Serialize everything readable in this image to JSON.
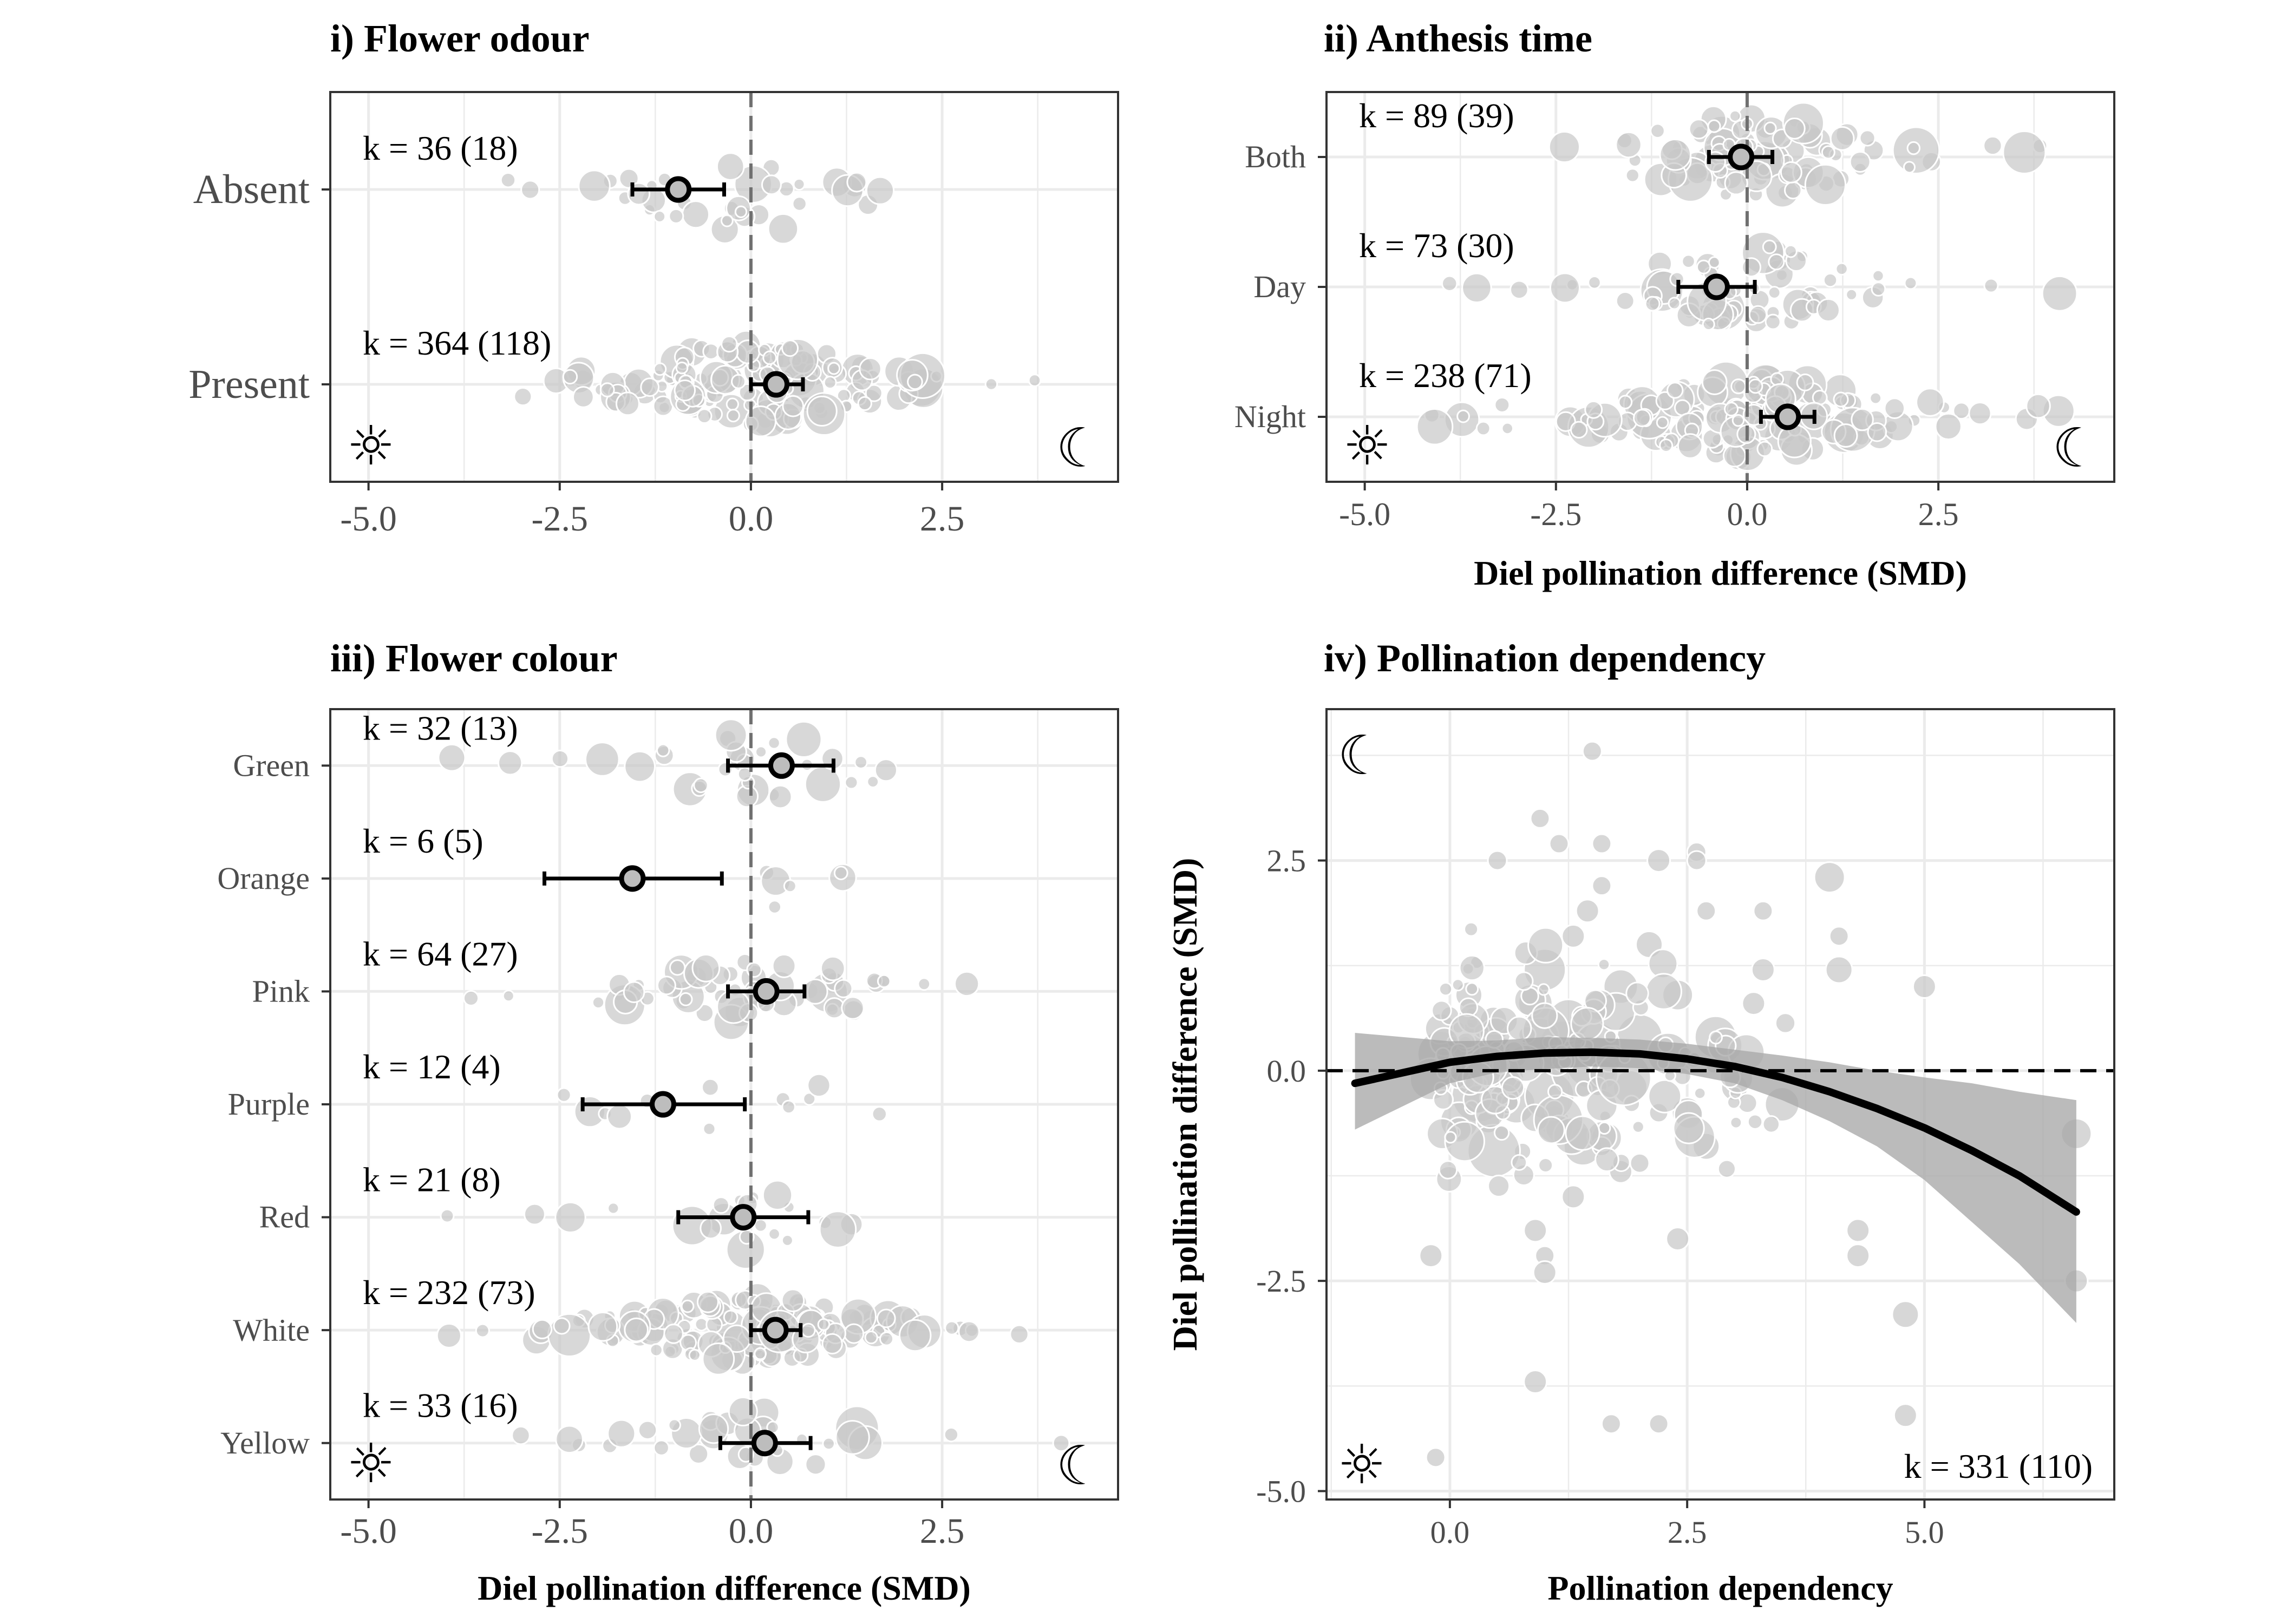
{
  "figure_description_free": true,
  "colors": {
    "points": "#c8c8c8",
    "point_stroke": "#ffffff",
    "estimate": "#000000",
    "ribbon": "#a8a8a8",
    "grid": "#ebebeb",
    "zero_line": "#707070"
  },
  "icons": {
    "day": "sun-icon",
    "night": "moon-icon"
  },
  "symbols": {
    "sun": "☼",
    "moon": "☾"
  },
  "chart_data": [
    {
      "type": "scatter",
      "title": "i) Flower odour",
      "xlabel": "",
      "ylabel": "",
      "xlim": [
        -5.5,
        4.8
      ],
      "xticks": [
        "-5.0",
        "-2.5",
        "0.0",
        "2.5"
      ],
      "xtick_values": [
        -5.0,
        -2.5,
        0.0,
        2.5
      ],
      "categories": [
        "Absent",
        "Present"
      ],
      "k_labels": [
        "k = 36 (18)",
        "k = 364 (118)"
      ],
      "estimates": [
        -0.95,
        0.33
      ],
      "ci_lower": [
        -1.55,
        0.0
      ],
      "ci_upper": [
        -0.35,
        0.68
      ],
      "point_counts": [
        36,
        364
      ],
      "point_spread": [
        1.1,
        1.05
      ]
    },
    {
      "type": "scatter",
      "title": "ii) Anthesis time",
      "xlabel": "Diel pollination difference (SMD)",
      "ylabel": "",
      "xlim": [
        -5.5,
        4.8
      ],
      "xticks": [
        "-5.0",
        "-2.5",
        "0.0",
        "2.5"
      ],
      "xtick_values": [
        -5.0,
        -2.5,
        0.0,
        2.5
      ],
      "categories": [
        "Both",
        "Day",
        "Night"
      ],
      "k_labels": [
        "k = 89 (39)",
        "k = 73 (30)",
        "k = 238 (71)"
      ],
      "estimates": [
        -0.08,
        -0.4,
        0.53
      ],
      "ci_lower": [
        -0.5,
        -0.9,
        0.18
      ],
      "ci_upper": [
        0.33,
        0.1,
        0.88
      ],
      "point_counts": [
        89,
        73,
        238
      ],
      "point_spread": [
        1.0,
        0.9,
        1.1
      ]
    },
    {
      "type": "scatter",
      "title": "iii) Flower colour",
      "xlabel": "Diel pollination difference (SMD)",
      "ylabel": "",
      "xlim": [
        -5.5,
        4.8
      ],
      "xticks": [
        "-5.0",
        "-2.5",
        "0.0",
        "2.5"
      ],
      "xtick_values": [
        -5.0,
        -2.5,
        0.0,
        2.5
      ],
      "categories": [
        "Green",
        "Orange",
        "Pink",
        "Purple",
        "Red",
        "White",
        "Yellow"
      ],
      "k_labels": [
        "k = 32 (13)",
        "k = 6 (5)",
        "k = 64 (27)",
        "k = 12 (4)",
        "k = 21 (8)",
        "k = 232 (73)",
        "k = 33 (16)"
      ],
      "estimates": [
        0.4,
        -1.55,
        0.2,
        -1.15,
        -0.1,
        0.32,
        0.18
      ],
      "ci_lower": [
        -0.3,
        -2.7,
        -0.3,
        -2.2,
        -0.95,
        0.0,
        -0.4
      ],
      "ci_upper": [
        1.08,
        -0.38,
        0.7,
        -0.08,
        0.75,
        0.65,
        0.78
      ],
      "point_counts": [
        32,
        6,
        64,
        12,
        21,
        232,
        33
      ],
      "point_spread": [
        1.0,
        1.4,
        1.0,
        1.0,
        0.6,
        1.05,
        0.9
      ]
    },
    {
      "type": "scatter",
      "title": "iv) Pollination dependency",
      "xlabel": "Pollination dependency",
      "ylabel": "Diel pollination difference (SMD)",
      "xlim": [
        -1.3,
        7.0
      ],
      "ylim": [
        -5.1,
        4.3
      ],
      "xticks": [
        "0.0",
        "2.5",
        "5.0"
      ],
      "xtick_values": [
        0.0,
        2.5,
        5.0
      ],
      "yticks": [
        "2.5",
        "0.0",
        "-2.5",
        "-5.0"
      ],
      "ytick_values": [
        2.5,
        0.0,
        -2.5,
        -5.0
      ],
      "k_label": "k = 331 (110)",
      "fit": {
        "x": [
          -1.0,
          0.0,
          0.5,
          1.0,
          1.5,
          2.0,
          2.5,
          3.0,
          3.5,
          4.0,
          4.5,
          5.0,
          5.5,
          6.0,
          6.6
        ],
        "y": [
          -0.15,
          0.1,
          0.17,
          0.21,
          0.22,
          0.2,
          0.14,
          0.05,
          -0.08,
          -0.25,
          -0.45,
          -0.68,
          -0.95,
          -1.25,
          -1.68
        ],
        "ci_lower": [
          -0.7,
          -0.15,
          -0.02,
          0.02,
          0.05,
          0.03,
          -0.04,
          -0.15,
          -0.35,
          -0.6,
          -0.9,
          -1.3,
          -1.8,
          -2.3,
          -3.0
        ],
        "ci_upper": [
          0.45,
          0.35,
          0.36,
          0.4,
          0.39,
          0.37,
          0.32,
          0.25,
          0.18,
          0.1,
          0.0,
          -0.08,
          -0.15,
          -0.25,
          -0.35
        ]
      },
      "points": {
        "x": [
          -0.1,
          0.0,
          0.3,
          0.5,
          0.7,
          0.9,
          1.0,
          1.1,
          1.2,
          1.3,
          1.4,
          1.5,
          1.6,
          1.8,
          2.0,
          2.2,
          2.4,
          2.6,
          2.8,
          3.0,
          3.3,
          3.5,
          4.0,
          4.1,
          4.3,
          4.8,
          5.0,
          6.6,
          -0.2,
          -0.1,
          0.1,
          0.2,
          0.4,
          0.6,
          0.8,
          0.95,
          1.05,
          1.15,
          1.25,
          1.35,
          1.45,
          1.55,
          1.65,
          1.75,
          1.9,
          2.1,
          2.3,
          2.5,
          2.7,
          2.9,
          3.2,
          0.95,
          1.5,
          1.6,
          2.6,
          2.7,
          0.9,
          1.0,
          0.5,
          1.8,
          2.2,
          3.3,
          4.1,
          4.3,
          1.7,
          2.2,
          4.8,
          6.6,
          -0.2,
          0.9,
          -0.15,
          1.0,
          1.3,
          1.6,
          2.0,
          2.4
        ],
        "y": [
          0.2,
          0.1,
          -0.3,
          0.5,
          -0.4,
          0.8,
          1.2,
          -0.6,
          0.3,
          1.6,
          -0.9,
          0.1,
          2.2,
          1.0,
          0.4,
          2.5,
          0.9,
          2.6,
          0.4,
          -0.2,
          1.2,
          -0.4,
          2.3,
          1.2,
          -1.9,
          -2.9,
          1.0,
          -0.75,
          -0.1,
          0.5,
          -0.6,
          0.9,
          0.2,
          -0.1,
          1.4,
          0.4,
          -0.3,
          2.7,
          0.6,
          0.0,
          1.9,
          0.3,
          -0.8,
          0.7,
          -0.2,
          1.5,
          0.2,
          -0.5,
          -0.9,
          0.3,
          0.8,
          3.0,
          3.8,
          2.7,
          2.5,
          1.9,
          -1.9,
          -2.2,
          2.5,
          -1.2,
          -0.5,
          1.9,
          1.6,
          -2.2,
          -4.2,
          -4.2,
          -4.1,
          -2.5,
          -2.2,
          -3.7,
          -4.6,
          -2.4,
          -1.5,
          -0.9,
          -1.1,
          -2.0
        ],
        "sizes": [
          60,
          40,
          70,
          30,
          50,
          45,
          55,
          40,
          65,
          30,
          50,
          70,
          25,
          45,
          60,
          30,
          40,
          25,
          55,
          35,
          30,
          45,
          40,
          35,
          30,
          35,
          30,
          40,
          55,
          40,
          50,
          35,
          60,
          45,
          30,
          50,
          65,
          25,
          55,
          70,
          30,
          60,
          40,
          50,
          45,
          35,
          55,
          40,
          35,
          45,
          30,
          25,
          25,
          25,
          25,
          25,
          30,
          25,
          25,
          30,
          25,
          25,
          25,
          30,
          25,
          25,
          30,
          30,
          30,
          30,
          25,
          30,
          30,
          25,
          25,
          30
        ]
      }
    }
  ]
}
